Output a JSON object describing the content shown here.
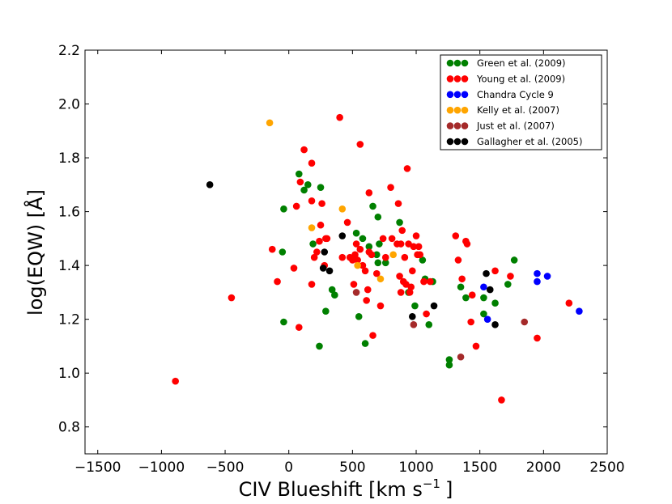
{
  "chart_data": {
    "type": "scatter",
    "xlabel": "CIV Blueshift [km s",
    "xlabel_sup": "−1",
    "xlabel_end": "]",
    "ylabel": "log(EQW) [Å]",
    "xlim": [
      -1600,
      2500
    ],
    "ylim": [
      0.7,
      2.2
    ],
    "x_ticks": [
      -1500,
      -1000,
      -500,
      0,
      500,
      1000,
      1500,
      2000,
      2500
    ],
    "x_tick_labels": [
      "−1500",
      "−1000",
      "−500",
      "0",
      "500",
      "1000",
      "1500",
      "2000",
      "2500"
    ],
    "y_ticks": [
      0.8,
      1.0,
      1.2,
      1.4,
      1.6,
      1.8,
      2.0,
      2.2
    ],
    "y_tick_labels": [
      "0.8",
      "1.0",
      "1.2",
      "1.4",
      "1.6",
      "1.8",
      "2.0",
      "2.2"
    ],
    "grid": false,
    "legend_position": "top-right",
    "series": [
      {
        "name": "Green et al. (2009)",
        "color": "#008000",
        "points": [
          [
            80,
            1.74
          ],
          [
            120,
            1.68
          ],
          [
            150,
            1.7
          ],
          [
            250,
            1.69
          ],
          [
            -40,
            1.61
          ],
          [
            190,
            1.48
          ],
          [
            -50,
            1.45
          ],
          [
            -40,
            1.19
          ],
          [
            240,
            1.1
          ],
          [
            290,
            1.23
          ],
          [
            340,
            1.31
          ],
          [
            360,
            1.29
          ],
          [
            550,
            1.21
          ],
          [
            600,
            1.11
          ],
          [
            530,
            1.52
          ],
          [
            580,
            1.5
          ],
          [
            630,
            1.47
          ],
          [
            690,
            1.44
          ],
          [
            700,
            1.41
          ],
          [
            760,
            1.41
          ],
          [
            710,
            1.48
          ],
          [
            660,
            1.62
          ],
          [
            700,
            1.58
          ],
          [
            870,
            1.56
          ],
          [
            940,
            1.3
          ],
          [
            990,
            1.25
          ],
          [
            1050,
            1.42
          ],
          [
            1070,
            1.35
          ],
          [
            1100,
            1.18
          ],
          [
            1130,
            1.34
          ],
          [
            1260,
            1.05
          ],
          [
            1260,
            1.03
          ],
          [
            1350,
            1.32
          ],
          [
            1390,
            1.28
          ],
          [
            1530,
            1.22
          ],
          [
            1530,
            1.28
          ],
          [
            1620,
            1.26
          ],
          [
            1720,
            1.33
          ],
          [
            1770,
            1.42
          ]
        ]
      },
      {
        "name": "Young et al. (2009)",
        "color": "#ff0000",
        "points": [
          [
            -890,
            0.97
          ],
          [
            -450,
            1.28
          ],
          [
            -130,
            1.46
          ],
          [
            -90,
            1.34
          ],
          [
            40,
            1.39
          ],
          [
            60,
            1.62
          ],
          [
            80,
            1.17
          ],
          [
            90,
            1.71
          ],
          [
            120,
            1.83
          ],
          [
            180,
            1.78
          ],
          [
            180,
            1.64
          ],
          [
            180,
            1.33
          ],
          [
            200,
            1.43
          ],
          [
            220,
            1.45
          ],
          [
            240,
            1.49
          ],
          [
            250,
            1.55
          ],
          [
            260,
            1.63
          ],
          [
            280,
            1.4
          ],
          [
            290,
            1.5
          ],
          [
            300,
            1.5
          ],
          [
            400,
            1.95
          ],
          [
            420,
            1.43
          ],
          [
            460,
            1.56
          ],
          [
            480,
            1.43
          ],
          [
            500,
            1.42
          ],
          [
            510,
            1.33
          ],
          [
            520,
            1.44
          ],
          [
            530,
            1.48
          ],
          [
            540,
            1.42
          ],
          [
            560,
            1.85
          ],
          [
            560,
            1.46
          ],
          [
            580,
            1.4
          ],
          [
            600,
            1.38
          ],
          [
            610,
            1.27
          ],
          [
            620,
            1.31
          ],
          [
            630,
            1.45
          ],
          [
            630,
            1.67
          ],
          [
            650,
            1.44
          ],
          [
            660,
            1.14
          ],
          [
            690,
            1.37
          ],
          [
            720,
            1.25
          ],
          [
            740,
            1.5
          ],
          [
            760,
            1.43
          ],
          [
            800,
            1.69
          ],
          [
            810,
            1.5
          ],
          [
            850,
            1.48
          ],
          [
            860,
            1.63
          ],
          [
            870,
            1.36
          ],
          [
            880,
            1.3
          ],
          [
            880,
            1.48
          ],
          [
            890,
            1.53
          ],
          [
            900,
            1.34
          ],
          [
            910,
            1.43
          ],
          [
            920,
            1.33
          ],
          [
            930,
            1.76
          ],
          [
            940,
            1.48
          ],
          [
            950,
            1.3
          ],
          [
            960,
            1.32
          ],
          [
            970,
            1.38
          ],
          [
            980,
            1.47
          ],
          [
            1000,
            1.51
          ],
          [
            1010,
            1.44
          ],
          [
            1020,
            1.47
          ],
          [
            1030,
            1.44
          ],
          [
            1060,
            1.34
          ],
          [
            1080,
            1.22
          ],
          [
            1110,
            1.34
          ],
          [
            1310,
            1.51
          ],
          [
            1330,
            1.42
          ],
          [
            1360,
            1.35
          ],
          [
            1390,
            1.49
          ],
          [
            1400,
            1.48
          ],
          [
            1430,
            1.19
          ],
          [
            1440,
            1.29
          ],
          [
            1470,
            1.1
          ],
          [
            1620,
            1.38
          ],
          [
            1670,
            0.9
          ],
          [
            1740,
            1.36
          ],
          [
            1950,
            1.13
          ],
          [
            2200,
            1.26
          ]
        ]
      },
      {
        "name": "Chandra Cycle 9",
        "color": "#0000ff",
        "points": [
          [
            1530,
            1.32
          ],
          [
            1560,
            1.2
          ],
          [
            1950,
            1.37
          ],
          [
            1950,
            1.34
          ],
          [
            2030,
            1.36
          ],
          [
            2280,
            1.23
          ]
        ]
      },
      {
        "name": "Kelly et al. (2007)",
        "color": "#ffa500",
        "points": [
          [
            -150,
            1.93
          ],
          [
            180,
            1.54
          ],
          [
            420,
            1.61
          ],
          [
            540,
            1.4
          ],
          [
            720,
            1.35
          ],
          [
            820,
            1.44
          ]
        ]
      },
      {
        "name": "Just et al. (2007)",
        "color": "#a52a2a",
        "points": [
          [
            530,
            1.3
          ],
          [
            980,
            1.18
          ],
          [
            1350,
            1.06
          ],
          [
            1850,
            1.19
          ]
        ]
      },
      {
        "name": "Gallagher et al. (2005)",
        "color": "#000000",
        "points": [
          [
            -620,
            1.7
          ],
          [
            270,
            1.39
          ],
          [
            280,
            1.45
          ],
          [
            320,
            1.38
          ],
          [
            420,
            1.51
          ],
          [
            970,
            1.21
          ],
          [
            1140,
            1.25
          ],
          [
            1550,
            1.37
          ],
          [
            1580,
            1.31
          ],
          [
            1620,
            1.18
          ]
        ]
      }
    ]
  }
}
